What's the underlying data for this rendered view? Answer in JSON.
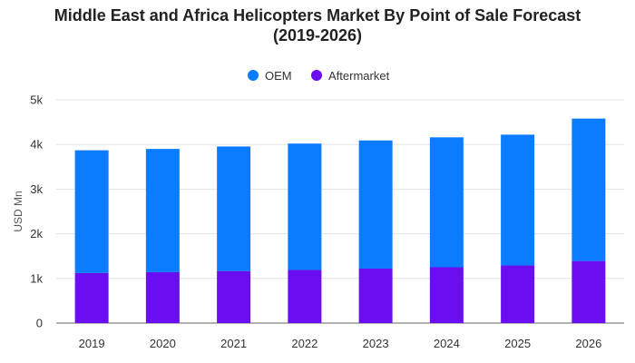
{
  "chart_data": {
    "type": "bar",
    "stacked": true,
    "title_lines": [
      "Middle East and Africa Helicopters Market By Point of Sale Forecast",
      "(2019-2026)"
    ],
    "ylabel": "USD Mn",
    "xlabel": "",
    "categories": [
      "2019",
      "2020",
      "2021",
      "2022",
      "2023",
      "2024",
      "2025",
      "2026"
    ],
    "y_ticks": [
      {
        "value": 0,
        "label": "0"
      },
      {
        "value": 1000,
        "label": "1k"
      },
      {
        "value": 2000,
        "label": "2k"
      },
      {
        "value": 3000,
        "label": "3k"
      },
      {
        "value": 4000,
        "label": "4k"
      },
      {
        "value": 5000,
        "label": "5k"
      }
    ],
    "ylim": [
      0,
      5000
    ],
    "grid": true,
    "legend_position": "top-center",
    "series": [
      {
        "name": "Aftermarket",
        "color": "#6a0df0",
        "values": [
          1120,
          1140,
          1165,
          1190,
          1220,
          1250,
          1290,
          1390
        ]
      },
      {
        "name": "OEM",
        "color": "#0b7cff",
        "values": [
          2750,
          2760,
          2790,
          2830,
          2870,
          2910,
          2930,
          3190
        ]
      }
    ],
    "legend_order": [
      "OEM",
      "Aftermarket"
    ]
  }
}
